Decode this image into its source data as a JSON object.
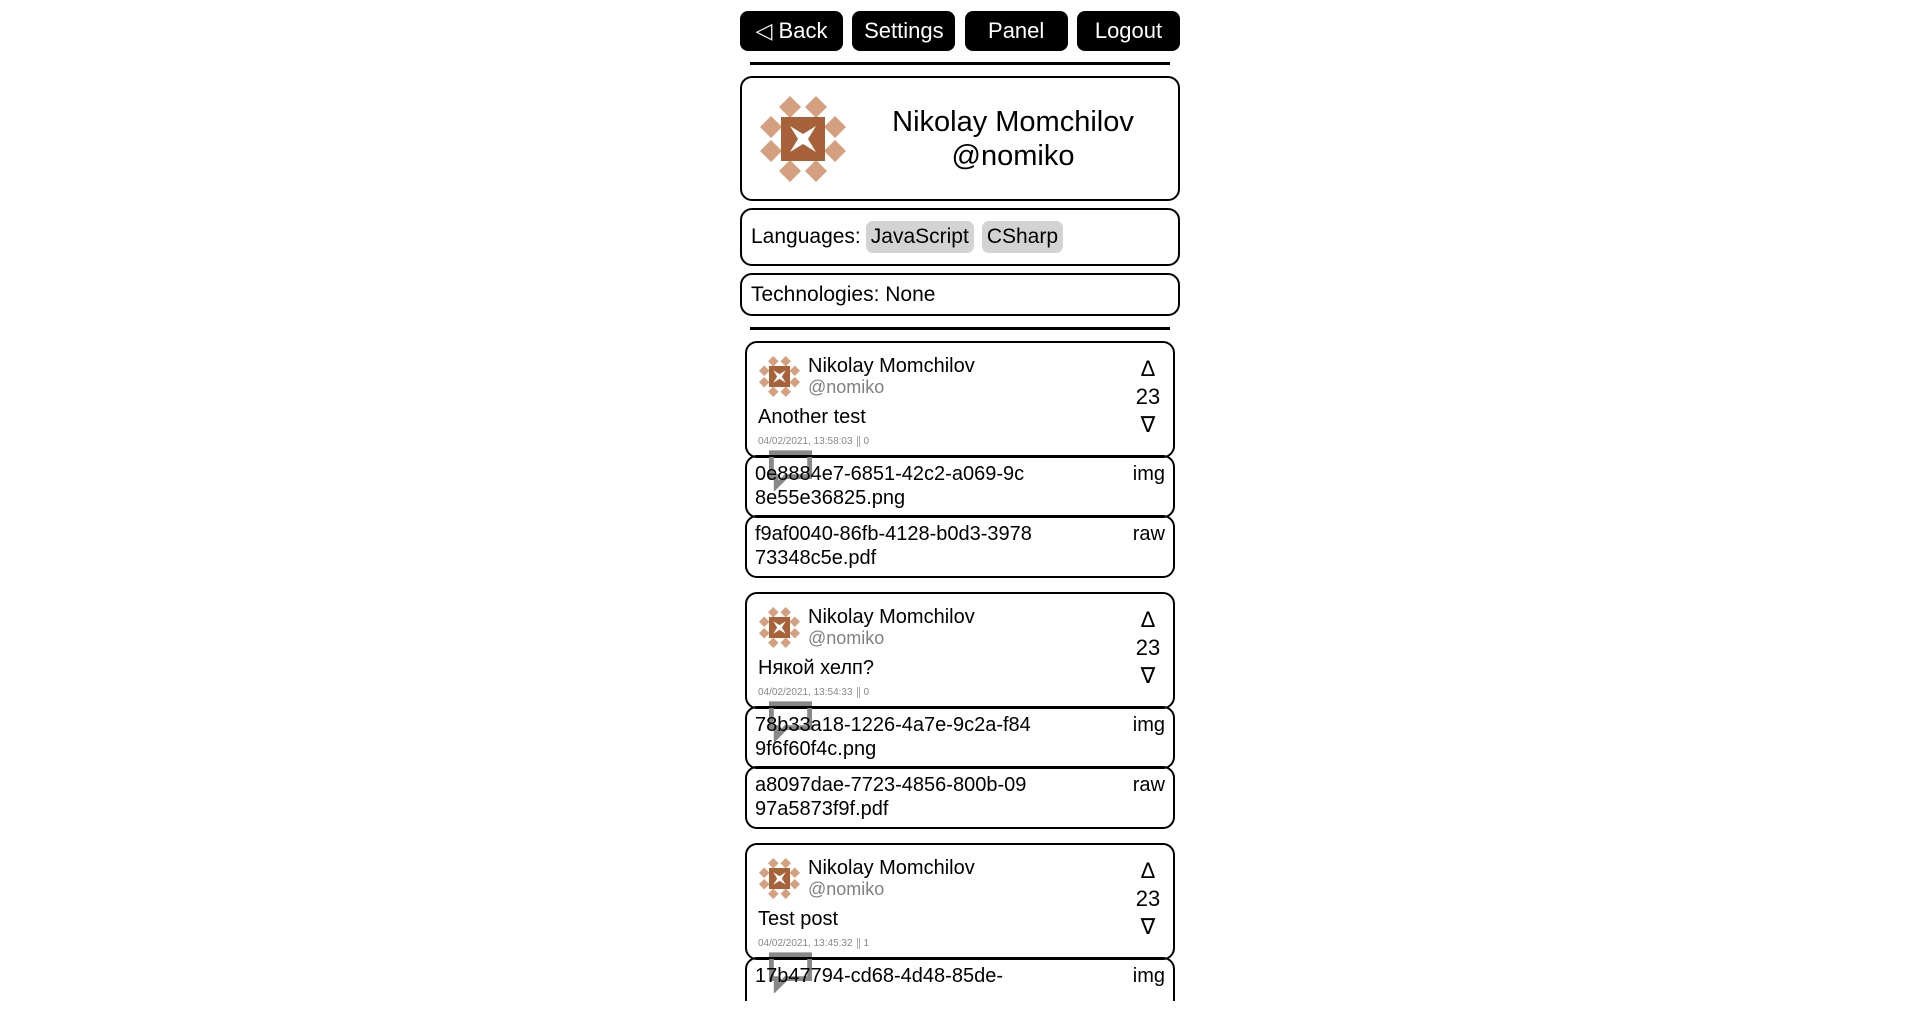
{
  "nav": {
    "back": "◁ Back",
    "settings": "Settings",
    "panel": "Panel",
    "logout": "Logout"
  },
  "profile": {
    "name": "Nikolay Momchilov",
    "handle": "@nomiko",
    "avatar_colors": {
      "light": "#d4a07f",
      "dark": "#a8623a"
    }
  },
  "languages": {
    "label": "Languages:",
    "items": [
      "JavaScript",
      "CSharp"
    ]
  },
  "technologies": {
    "text": "Technologies: None"
  },
  "posts": [
    {
      "author": "Nikolay Momchilov",
      "handle": "@nomiko",
      "text": "Another test",
      "timestamp": "04/02/2021, 13:58:03",
      "comments": "0",
      "up": "Δ",
      "score": "23",
      "down": "∇",
      "files": [
        {
          "name": "0e8884e7-6851-42c2-a069-9c8e55e36825.png",
          "kind": "img"
        },
        {
          "name": "f9af0040-86fb-4128-b0d3-397873348c5e.pdf",
          "kind": "raw"
        }
      ]
    },
    {
      "author": "Nikolay Momchilov",
      "handle": "@nomiko",
      "text": "Някой хелп?",
      "timestamp": "04/02/2021, 13:54:33",
      "comments": "0",
      "up": "Δ",
      "score": "23",
      "down": "∇",
      "files": [
        {
          "name": "78b33a18-1226-4a7e-9c2a-f849f6f60f4c.png",
          "kind": "img"
        },
        {
          "name": "a8097dae-7723-4856-800b-0997a5873f9f.pdf",
          "kind": "raw"
        }
      ]
    },
    {
      "author": "Nikolay Momchilov",
      "handle": "@nomiko",
      "text": "Test post",
      "timestamp": "04/02/2021, 13:45:32",
      "comments": "1",
      "up": "Δ",
      "score": "23",
      "down": "∇",
      "files": [
        {
          "name": "17b47794-cd68-4d48-85de-",
          "kind": "img"
        }
      ]
    }
  ]
}
